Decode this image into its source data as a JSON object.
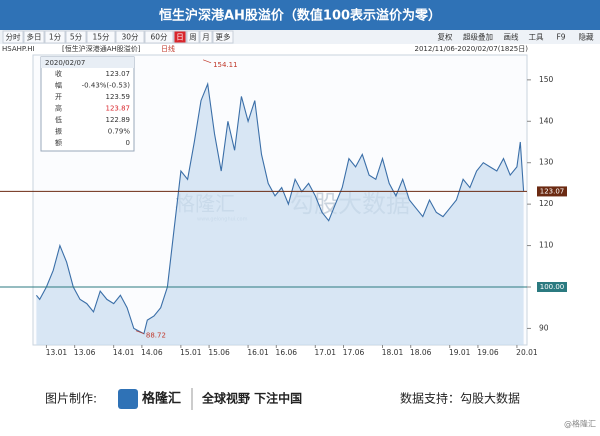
{
  "header": {
    "title": "恒生沪深港AH股溢价（数值100表示溢价为零）"
  },
  "toolbar": {
    "left": [
      "分时",
      "多日",
      "1分",
      "5分",
      "15分",
      "30分",
      "60分",
      "日",
      "周",
      "月",
      "更多"
    ],
    "selected": 7,
    "right": [
      "复权",
      "超级叠加",
      "画线",
      "工具",
      "F9",
      "隐藏"
    ]
  },
  "info_row": {
    "code": "HSAHP.HI",
    "name": "[恒生沪深港通AH股溢价]",
    "period": "日线",
    "range": "2012/11/06-2020/02/07(1825日)"
  },
  "quote_panel": {
    "date": "2020/02/07",
    "rows": [
      [
        "收",
        "123.07"
      ],
      [
        "幅",
        "-0.43%(-0.53)"
      ],
      [
        "开",
        "123.59"
      ],
      [
        "高",
        "123.87"
      ],
      [
        "低",
        "122.89"
      ],
      [
        "振",
        "0.79%"
      ],
      [
        "额",
        "0"
      ]
    ]
  },
  "watermark": {
    "brand": "格隆汇",
    "site": "www.gelonghui.com",
    "data": "勾股大数据"
  },
  "footer": {
    "made_by": "图片制作:",
    "brand": "格隆汇",
    "slogan": "全球视野 下注中国",
    "source": "数据支持：勾股大数据",
    "credit": "@格隆汇"
  },
  "chart_data": {
    "type": "area-line",
    "color": "#3b6fa8",
    "fill": "#c9ddef",
    "x": [
      2012.85,
      2012.9,
      2013.0,
      2013.1,
      2013.2,
      2013.3,
      2013.4,
      2013.5,
      2013.6,
      2013.7,
      2013.8,
      2013.9,
      2014.0,
      2014.1,
      2014.2,
      2014.3,
      2014.45,
      2014.5,
      2014.6,
      2014.7,
      2014.8,
      2014.9,
      2015.0,
      2015.1,
      2015.2,
      2015.3,
      2015.4,
      2015.5,
      2015.6,
      2015.7,
      2015.8,
      2015.9,
      2016.0,
      2016.1,
      2016.2,
      2016.3,
      2016.4,
      2016.5,
      2016.6,
      2016.7,
      2016.8,
      2016.9,
      2017.0,
      2017.1,
      2017.2,
      2017.3,
      2017.4,
      2017.5,
      2017.6,
      2017.7,
      2017.8,
      2017.9,
      2018.0,
      2018.1,
      2018.2,
      2018.3,
      2018.4,
      2018.5,
      2018.6,
      2018.7,
      2018.8,
      2018.9,
      2019.0,
      2019.1,
      2019.2,
      2019.3,
      2019.4,
      2019.5,
      2019.6,
      2019.7,
      2019.8,
      2019.9,
      2020.0,
      2020.05,
      2020.1
    ],
    "values": [
      98,
      97,
      100,
      104,
      110,
      106,
      100,
      97,
      96,
      94,
      99,
      97,
      96,
      98,
      95,
      90,
      88.72,
      92,
      93,
      95,
      100,
      114,
      128,
      126,
      135,
      145,
      149,
      137,
      128,
      140,
      133,
      146,
      140,
      145,
      132,
      125,
      122,
      124,
      120,
      126,
      123,
      125,
      122,
      118,
      116,
      120,
      124,
      131,
      129,
      132,
      127,
      126,
      131,
      125,
      122,
      126,
      121,
      119,
      117,
      121,
      118,
      117,
      119,
      121,
      126,
      124,
      128,
      130,
      129,
      128,
      131,
      127,
      129,
      135,
      123.07
    ],
    "xlim": [
      2012.8,
      2020.15
    ],
    "xticks": [
      {
        "value": 2013.0,
        "label": "13.01"
      },
      {
        "value": 2013.42,
        "label": "13.06"
      },
      {
        "value": 2014.0,
        "label": "14.01"
      },
      {
        "value": 2014.42,
        "label": "14.06"
      },
      {
        "value": 2015.0,
        "label": "15.01"
      },
      {
        "value": 2015.42,
        "label": "15.06"
      },
      {
        "value": 2016.0,
        "label": "16.01"
      },
      {
        "value": 2016.42,
        "label": "16.06"
      },
      {
        "value": 2017.0,
        "label": "17.01"
      },
      {
        "value": 2017.42,
        "label": "17.06"
      },
      {
        "value": 2018.0,
        "label": "18.01"
      },
      {
        "value": 2018.42,
        "label": "18.06"
      },
      {
        "value": 2019.0,
        "label": "19.01"
      },
      {
        "value": 2019.42,
        "label": "19.06"
      },
      {
        "value": 2020.0,
        "label": "20.01"
      }
    ],
    "ylim": [
      86,
      156
    ],
    "yticks": [
      90,
      100,
      110,
      120,
      130,
      140,
      150
    ],
    "ref_lines": [
      {
        "value": 123.07,
        "label": "123.07",
        "color": "#6b2a12"
      },
      {
        "value": 100,
        "label": "100.00",
        "color": "#2b7a80"
      }
    ],
    "annotations": [
      {
        "x": 2015.45,
        "y": 154.11,
        "label": "154.11"
      },
      {
        "x": 2014.45,
        "y": 88.72,
        "label": "88.72"
      }
    ]
  }
}
